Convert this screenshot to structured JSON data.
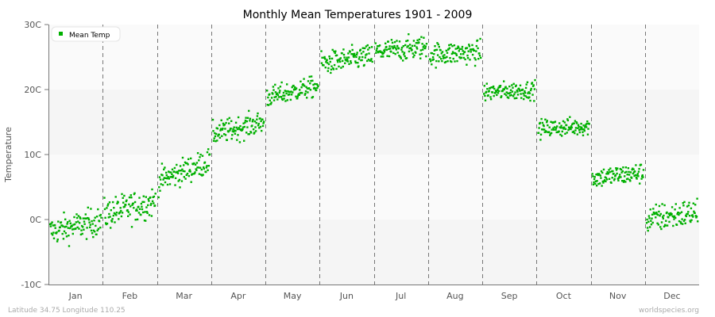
{
  "chart_data": {
    "type": "scatter",
    "title": "Monthly Mean Temperatures 1901 - 2009",
    "xlabel": "",
    "ylabel": "Temperature",
    "ylim": [
      -10,
      30
    ],
    "yticks": [
      {
        "v": 30,
        "label": "30C"
      },
      {
        "v": 20,
        "label": "20C"
      },
      {
        "v": 10,
        "label": "10C"
      },
      {
        "v": 0,
        "label": "0C"
      },
      {
        "v": -10,
        "label": "-10C"
      }
    ],
    "categories": [
      "Jan",
      "Feb",
      "Mar",
      "Apr",
      "May",
      "Jun",
      "Jul",
      "Aug",
      "Sep",
      "Oct",
      "Nov",
      "Dec"
    ],
    "years": [
      1901,
      2009
    ],
    "legend": {
      "label": "Mean Temp",
      "placement": "top-left"
    },
    "series": [
      {
        "name": "Mean Temp",
        "color": "#00b000",
        "monthly_trend_start": [
          -1.8,
          0.8,
          6.0,
          13.2,
          18.8,
          24.0,
          25.8,
          25.4,
          19.6,
          14.0,
          6.4,
          0.0
        ],
        "monthly_trend_end": [
          -0.2,
          2.8,
          9.0,
          15.0,
          20.6,
          25.2,
          26.6,
          25.8,
          20.0,
          14.4,
          7.2,
          1.2
        ],
        "monthly_spread": [
          1.1,
          1.2,
          1.0,
          0.9,
          0.8,
          0.9,
          0.9,
          0.9,
          0.7,
          0.7,
          0.8,
          1.1
        ]
      }
    ],
    "grid": true
  },
  "footer": {
    "location": "Latitude 34.75 Longitude 110.25",
    "source": "worldspecies.org"
  }
}
